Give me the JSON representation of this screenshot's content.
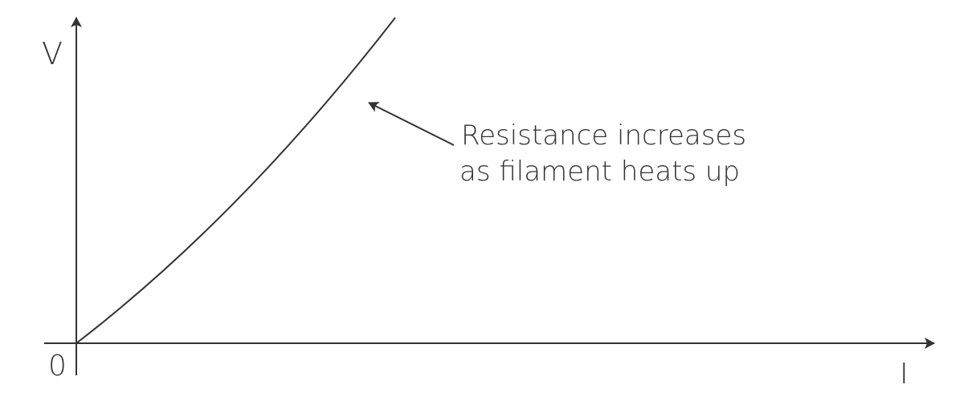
{
  "graph": {
    "y_axis_label": "V",
    "x_axis_label": "I",
    "origin_label": "0",
    "annotation": {
      "line1": "Resistance increases",
      "line2": "as filament heats up"
    },
    "curve_shape": "concave-up",
    "line_color": "#333333"
  }
}
